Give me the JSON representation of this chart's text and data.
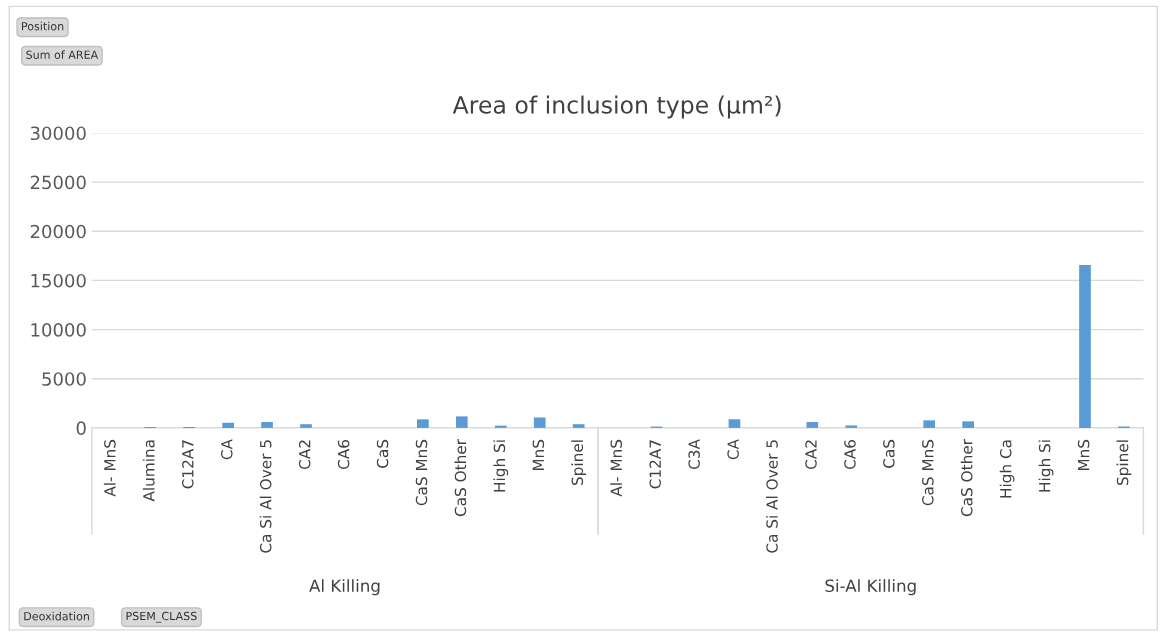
{
  "chart_data": {
    "type": "bar",
    "title": "Area of inclusion type (µm²)",
    "categories": [
      "Al- MnS",
      "Alumina",
      "C12A7",
      "CA",
      "Ca Si Al Over 5",
      "CA2",
      "CA6",
      "CaS",
      "CaS MnS",
      "CaS Other",
      "High Si",
      "MnS",
      "Spinel",
      "Al- MnS",
      "C12A7",
      "C3A",
      "CA",
      "Ca Si Al Over 5",
      "CA2",
      "CA6",
      "CaS",
      "CaS MnS",
      "CaS Other",
      "High Ca",
      "High Si",
      "MnS",
      "Spinel"
    ],
    "values": [
      0,
      100,
      100,
      530,
      600,
      380,
      0,
      0,
      870,
      1170,
      230,
      1060,
      380,
      0,
      140,
      0,
      880,
      0,
      600,
      250,
      0,
      770,
      670,
      0,
      0,
      16580,
      140
    ],
    "color": "#5b9bd5",
    "ylim": [
      0,
      30000
    ],
    "yticks": [
      0,
      5000,
      10000,
      15000,
      20000,
      25000,
      30000
    ],
    "grid": "y",
    "annotations": [
      "Position",
      "Sum of AREA",
      "Deoxidation",
      "PSEM_CLASS",
      "Al Killing",
      "Si-Al Killing"
    ]
  }
}
